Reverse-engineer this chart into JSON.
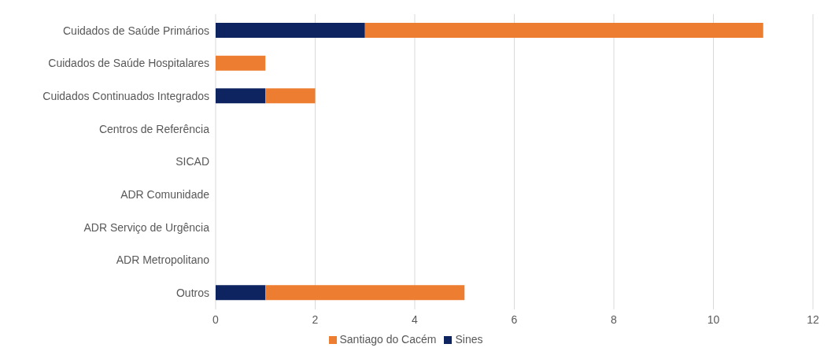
{
  "chart_data": {
    "type": "bar",
    "orientation": "horizontal",
    "stacked": true,
    "categories": [
      "Cuidados de Saúde Primários",
      "Cuidados de Saúde Hospitalares",
      "Cuidados Continuados Integrados",
      "Centros de Referência",
      "SICAD",
      "ADR Comunidade",
      "ADR Serviço de Urgência",
      "ADR Metropolitano",
      "Outros"
    ],
    "series": [
      {
        "name": "Sines",
        "color": "#0e2461",
        "values": [
          3,
          0,
          1,
          0,
          0,
          0,
          0,
          0,
          1
        ]
      },
      {
        "name": "Santiago do Cacém",
        "color": "#ed7d31",
        "values": [
          8,
          1,
          1,
          0,
          0,
          0,
          0,
          0,
          4
        ]
      }
    ],
    "xlim": [
      0,
      12
    ],
    "xticks": [
      0,
      2,
      4,
      6,
      8,
      10,
      12
    ],
    "grid": "x",
    "legend": "bottom"
  }
}
